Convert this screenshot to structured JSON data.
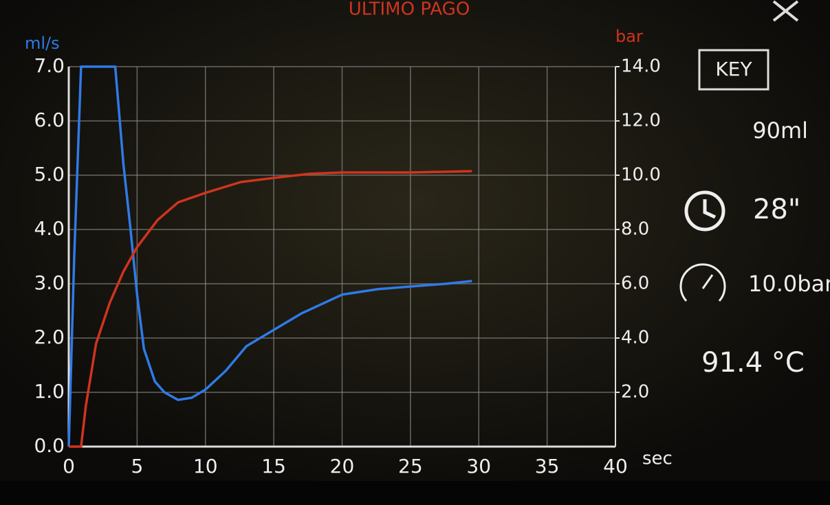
{
  "chart_data": {
    "type": "line",
    "title": "ULTIMO PAGO",
    "ylabel": "ml/s",
    "y2label": "bar",
    "xlabel": "sec",
    "xlim": [
      0,
      40
    ],
    "xticks": [
      0,
      5,
      10,
      15,
      20,
      25,
      30,
      35,
      40
    ],
    "ylim": [
      0,
      7
    ],
    "yticks": [
      {
        "value": 0,
        "label": "0.0"
      },
      {
        "value": 1,
        "label": "1.0"
      },
      {
        "value": 2,
        "label": "2.0"
      },
      {
        "value": 3,
        "label": "3.0"
      },
      {
        "value": 4,
        "label": "4.0"
      },
      {
        "value": 5,
        "label": "5.0"
      },
      {
        "value": 6,
        "label": "6.0"
      },
      {
        "value": 7,
        "label": "7.0"
      }
    ],
    "y2lim": [
      0,
      14
    ],
    "y2ticks": [
      {
        "value": 2,
        "label": "2.0"
      },
      {
        "value": 4,
        "label": "4.0"
      },
      {
        "value": 6,
        "label": "6.0"
      },
      {
        "value": 8,
        "label": "8.0"
      },
      {
        "value": 10,
        "label": "10.0"
      },
      {
        "value": 12,
        "label": "12.0"
      },
      {
        "value": 14,
        "label": "14.0"
      }
    ],
    "grid": true,
    "series": [
      {
        "color": "#2f7be8",
        "x": [
          0,
          0.4,
          0.9,
          3.4,
          4.0,
          4.5,
          5.0,
          5.5,
          6.3,
          7.0,
          8.0,
          9.0,
          10,
          11.5,
          13,
          15,
          17,
          20,
          22.6,
          25,
          27.6,
          29.5
        ],
        "values": [
          0,
          3.5,
          7.0,
          7.0,
          5.2,
          4.05,
          2.8,
          1.8,
          1.2,
          1.0,
          0.86,
          0.9,
          1.05,
          1.4,
          1.85,
          2.15,
          2.45,
          2.8,
          2.9,
          2.95,
          3.0,
          3.05
        ]
      },
      {
        "color": "#d0341e",
        "axis": "y2",
        "x": [
          0,
          0.9,
          1.25,
          2.0,
          3.0,
          4.0,
          5.0,
          6.5,
          8.0,
          10,
          12.6,
          15,
          17.6,
          20,
          25,
          29.5
        ],
        "values": [
          0,
          0,
          1.5,
          3.8,
          5.3,
          6.45,
          7.35,
          8.35,
          9.0,
          9.35,
          9.75,
          9.9,
          10.05,
          10.1,
          10.1,
          10.15
        ]
      }
    ]
  },
  "panel": {
    "key": "KEY",
    "volume": "90ml",
    "time": "28\"",
    "pressure": "10.0bar",
    "temperature": "91.4 °C"
  }
}
